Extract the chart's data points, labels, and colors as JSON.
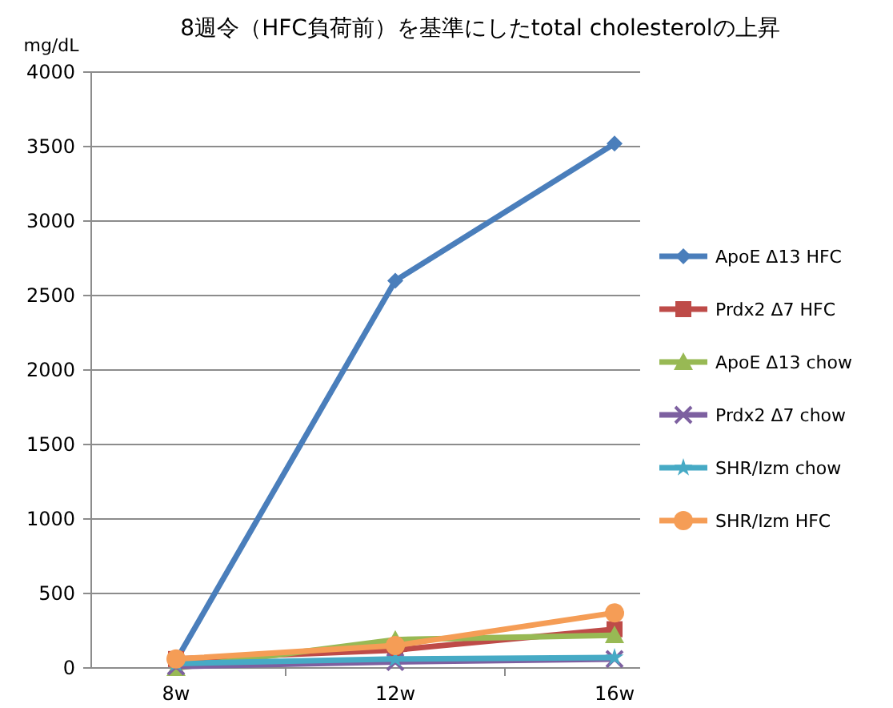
{
  "chart_data": {
    "type": "line",
    "title": "8週令（HFC負荷前）を基準にしたtotal cholesterolの上昇",
    "ylabel": "mg/dL",
    "categories": [
      "8w",
      "12w",
      "16w"
    ],
    "series": [
      {
        "name": "ApoE Δ13 HFC",
        "color": "#4a7ebb",
        "marker": "diamond",
        "values": [
          50,
          2600,
          3520
        ]
      },
      {
        "name": "Prdx2 Δ7 HFC",
        "color": "#be4b48",
        "marker": "square",
        "values": [
          60,
          120,
          260
        ]
      },
      {
        "name": "ApoE Δ13  chow",
        "color": "#98b954",
        "marker": "triangle",
        "values": [
          0,
          190,
          220
        ]
      },
      {
        "name": "Prdx2 Δ7  chow",
        "color": "#7d60a0",
        "marker": "cross",
        "values": [
          10,
          40,
          60
        ]
      },
      {
        "name": "SHR/Izm chow",
        "color": "#46aac5",
        "marker": "star",
        "values": [
          30,
          60,
          70
        ]
      },
      {
        "name": "SHR/Izm HFC",
        "color": "#f59d56",
        "marker": "circle",
        "values": [
          60,
          150,
          370
        ]
      }
    ],
    "ylim": [
      0,
      4000
    ],
    "yticks": [
      0,
      500,
      1000,
      1500,
      2000,
      2500,
      3000,
      3500,
      4000
    ],
    "grid": "y",
    "legend": "right"
  }
}
